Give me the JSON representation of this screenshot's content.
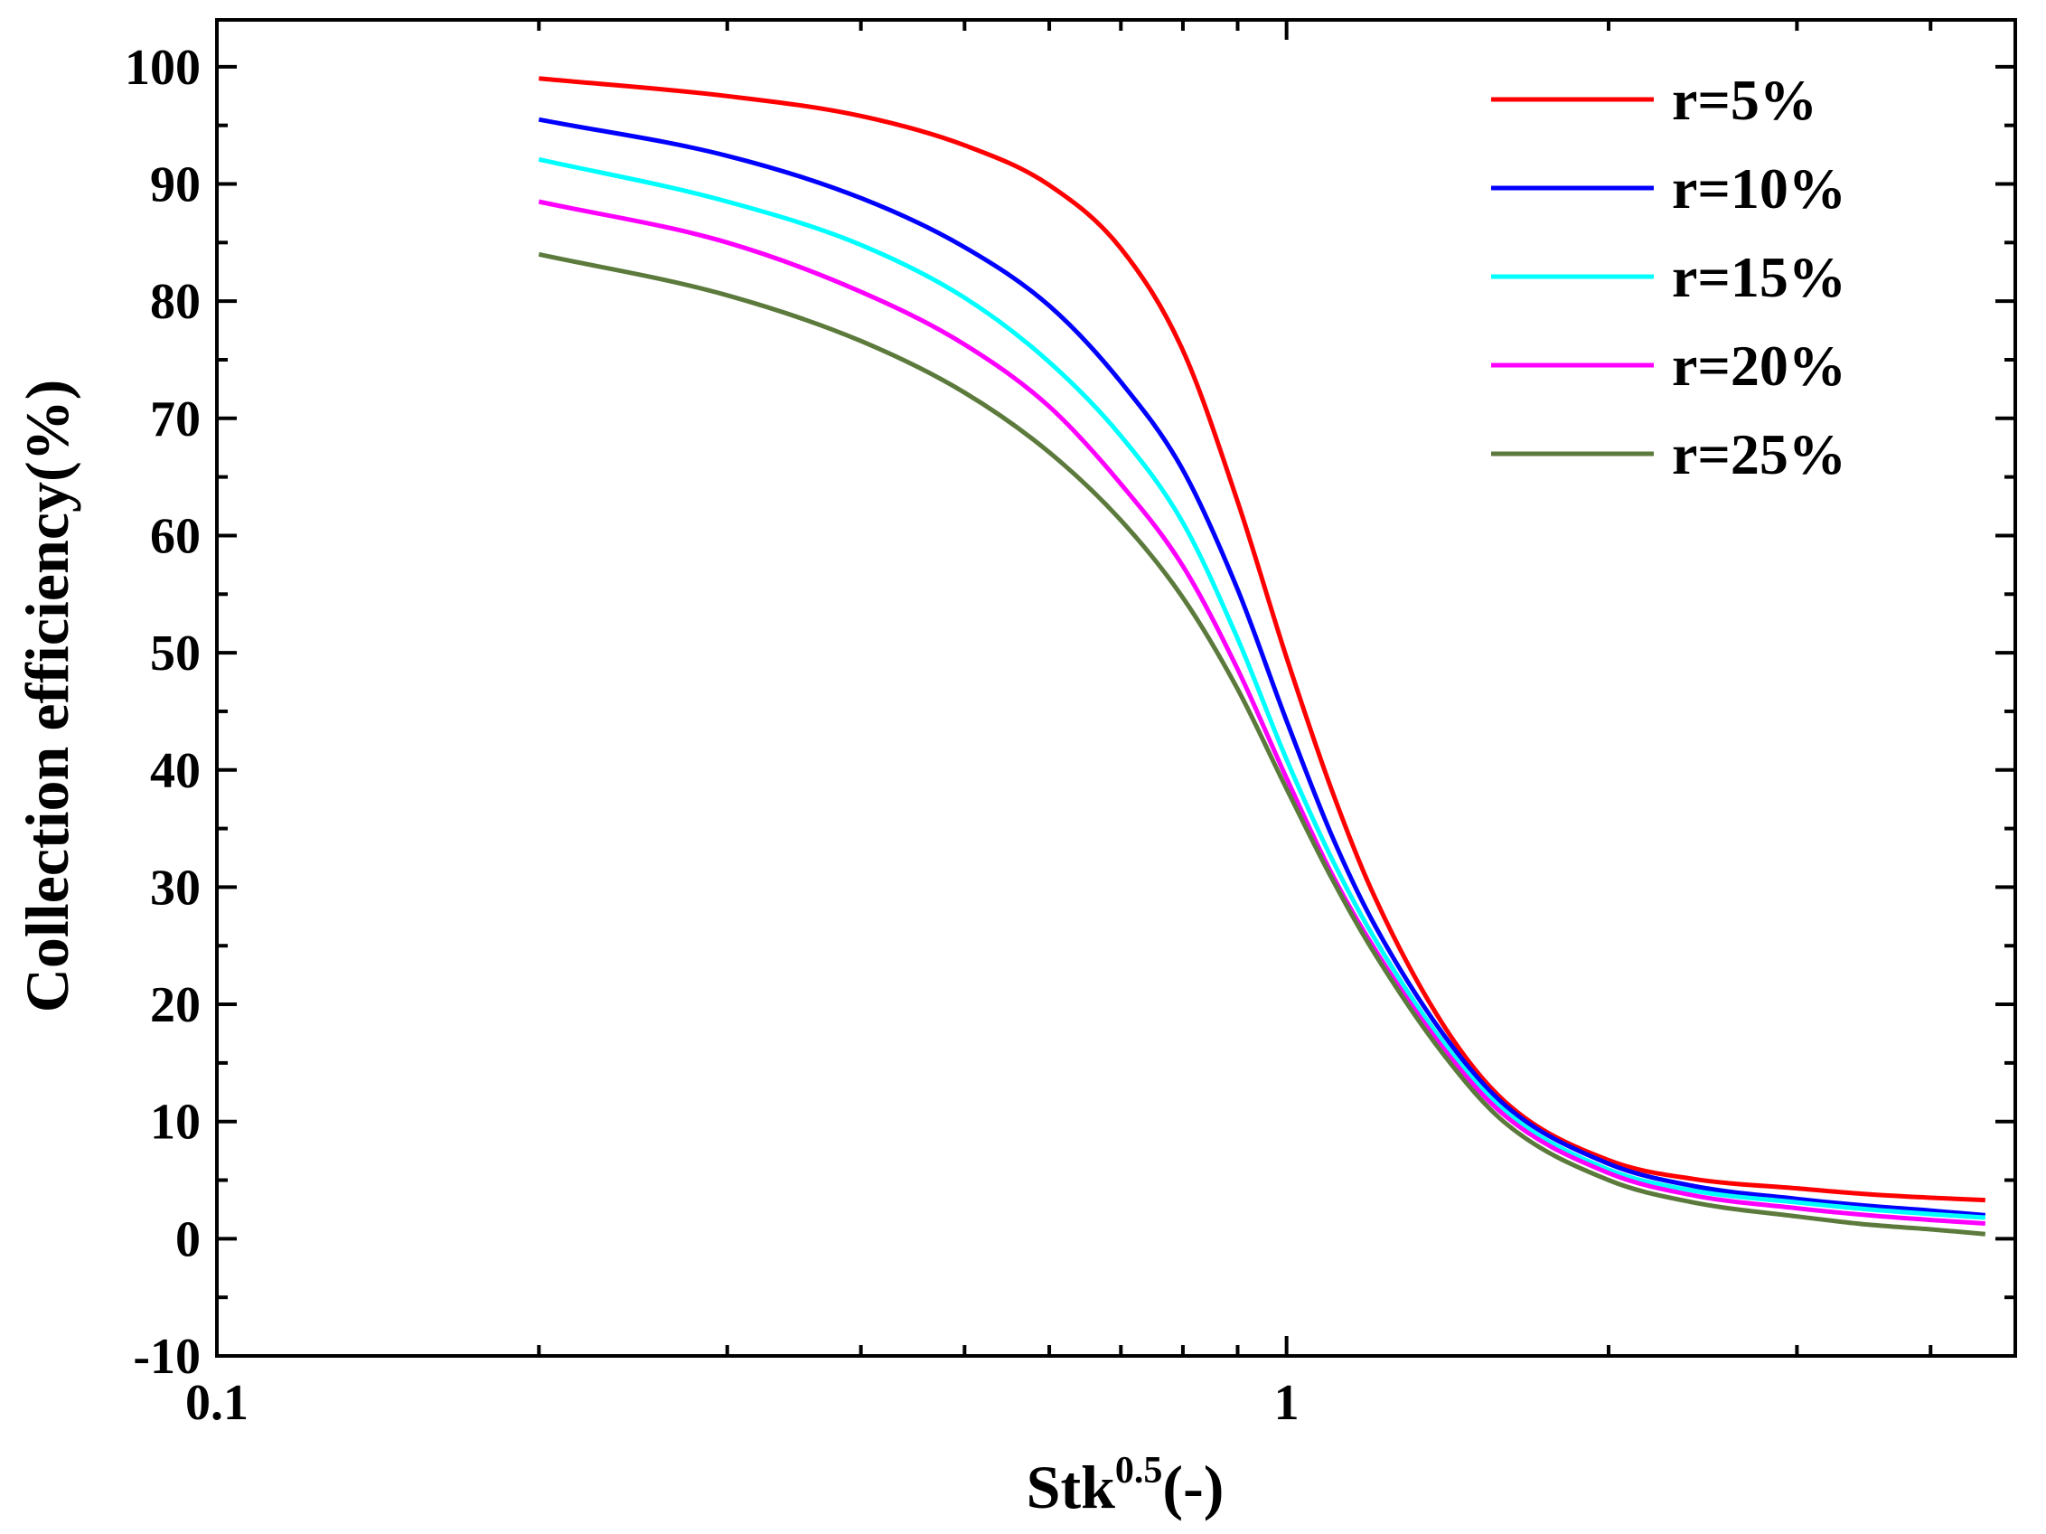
{
  "chart_data": {
    "type": "line",
    "title": "",
    "xlabel": "Stk",
    "xlabel_sup": "0.5",
    "xlabel_suffix": "(-)",
    "ylabel": "Collection efficiency(%)",
    "xscale": "log",
    "xlim": [
      0.1,
      4.8
    ],
    "ylim": [
      -10,
      104
    ],
    "x_ticks": [
      {
        "value": 0.1,
        "label": "0.1"
      },
      {
        "value": 1,
        "label": "1"
      }
    ],
    "y_ticks": [
      {
        "value": -10,
        "label": "-10"
      },
      {
        "value": 0,
        "label": "0"
      },
      {
        "value": 10,
        "label": "10"
      },
      {
        "value": 20,
        "label": "20"
      },
      {
        "value": 30,
        "label": "30"
      },
      {
        "value": 40,
        "label": "40"
      },
      {
        "value": 50,
        "label": "50"
      },
      {
        "value": 60,
        "label": "60"
      },
      {
        "value": 70,
        "label": "70"
      },
      {
        "value": 80,
        "label": "80"
      },
      {
        "value": 90,
        "label": "90"
      },
      {
        "value": 100,
        "label": "100"
      }
    ],
    "legend_position": "top-right",
    "x": [
      0.2,
      0.3,
      0.4,
      0.5,
      0.6,
      0.7,
      0.8,
      0.9,
      1.0,
      1.1,
      1.2,
      1.4,
      1.6,
      2.0,
      2.4,
      3.0,
      3.5,
      4.0,
      4.5
    ],
    "series": [
      {
        "name": "r=5%",
        "color": "#ff0000",
        "values": [
          99.0,
          97.5,
          95.8,
          93.3,
          89.9,
          84.5,
          75.8,
          62.9,
          49.6,
          38.5,
          29.8,
          18.3,
          11.7,
          6.7,
          5.1,
          4.3,
          3.8,
          3.5,
          3.3
        ]
      },
      {
        "name": "r=10%",
        "color": "#0000ff",
        "values": [
          95.5,
          92.4,
          88.8,
          84.6,
          79.6,
          73.1,
          65.6,
          55.4,
          44.2,
          34.6,
          27.3,
          17.5,
          11.4,
          6.4,
          4.5,
          3.4,
          2.8,
          2.4,
          2.0
        ]
      },
      {
        "name": "r=15%",
        "color": "#00ffff",
        "values": [
          92.1,
          88.5,
          84.8,
          80.3,
          74.8,
          68.5,
          61.1,
          51.2,
          40.9,
          32.6,
          26.1,
          16.8,
          10.9,
          5.9,
          4.1,
          3.1,
          2.5,
          2.1,
          1.8
        ]
      },
      {
        "name": "r=20%",
        "color": "#ff00ff",
        "values": [
          88.5,
          85.0,
          80.8,
          76.3,
          71.0,
          64.4,
          57.4,
          48.6,
          39.3,
          31.3,
          25.2,
          16.3,
          10.5,
          5.6,
          3.7,
          2.6,
          2.0,
          1.6,
          1.3
        ]
      },
      {
        "name": "r=25%",
        "color": "#5b7a3c",
        "values": [
          84.0,
          80.5,
          76.6,
          72.2,
          67.1,
          61.3,
          54.7,
          46.9,
          38.4,
          30.9,
          24.8,
          15.8,
          9.9,
          5.0,
          3.1,
          1.9,
          1.2,
          0.8,
          0.4
        ]
      }
    ]
  }
}
